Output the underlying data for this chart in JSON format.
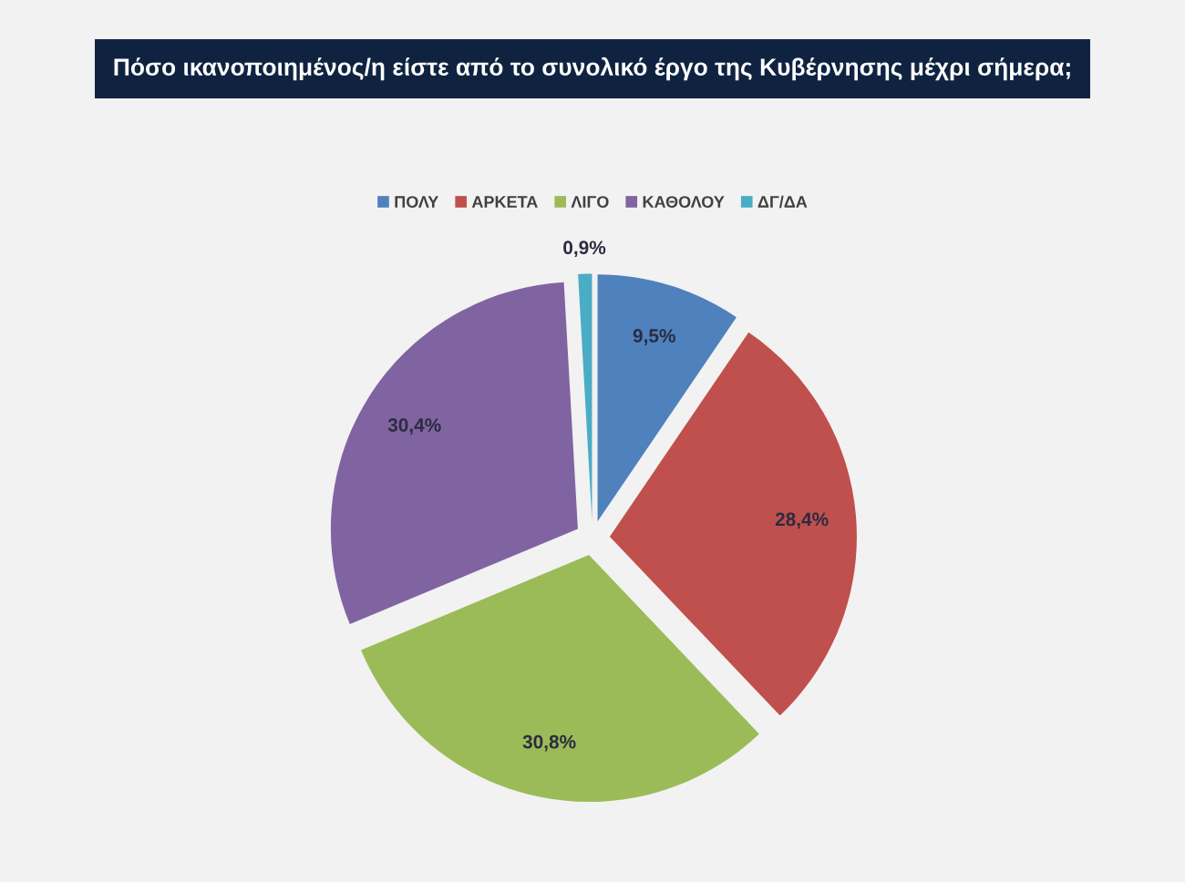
{
  "chart_data": {
    "type": "pie",
    "title": "Πόσο ικανοποιημένος/η είστε από το συνολικό έργο της Κυβέρνησης μέχρι σήμερα;",
    "categories": [
      "ΠΟΛΥ",
      "ΑΡΚΕΤΑ",
      "ΛΙΓΟ",
      "ΚΑΘΟΛΟΥ",
      "ΔΓ/ΔΑ"
    ],
    "values": [
      9.5,
      28.4,
      30.8,
      30.4,
      0.9
    ],
    "colors": [
      "#4f81bd",
      "#c0504d",
      "#9bbb59",
      "#8064a2",
      "#4bacc6"
    ],
    "value_labels": [
      "9,5%",
      "28,4%",
      "30,8%",
      "30,4%",
      "0,9%"
    ],
    "legend": "top"
  }
}
